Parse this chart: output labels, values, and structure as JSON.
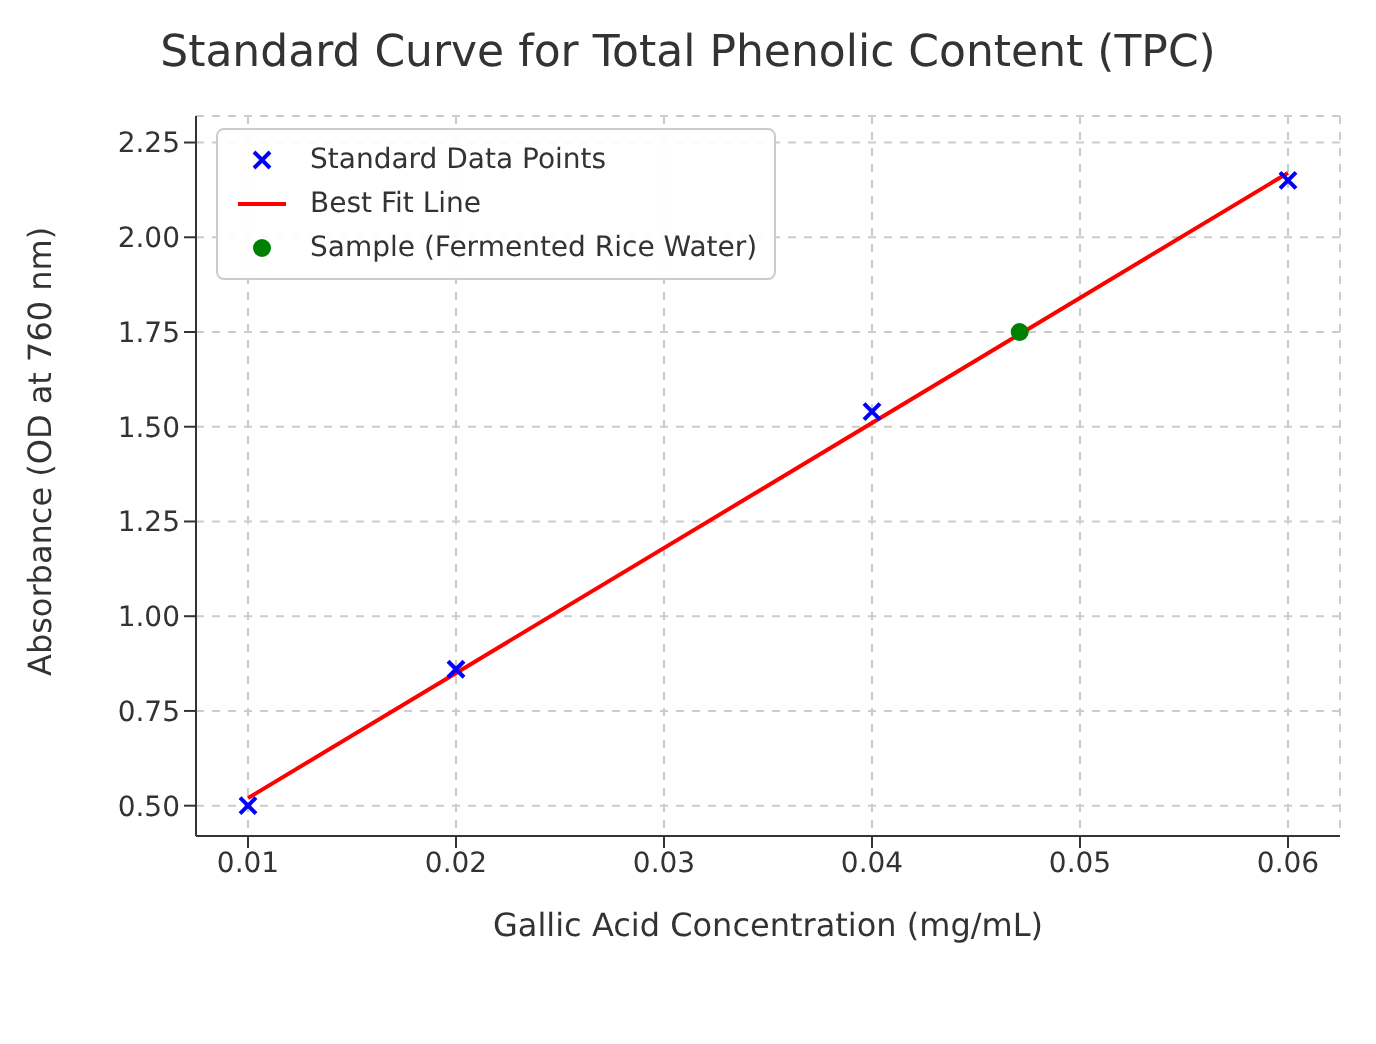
{
  "chart_data": {
    "type": "scatter",
    "title": "Standard Curve for Total Phenolic Content (TPC)",
    "xlabel": "Gallic Acid Concentration (mg/mL)",
    "ylabel": "Absorbance (OD at 760 nm)",
    "xlim": [
      0.0075,
      0.0625
    ],
    "xticks": [
      0.01,
      0.02,
      0.03,
      0.04,
      0.05,
      0.06
    ],
    "ylim": [
      0.42,
      2.32
    ],
    "yticks": [
      {
        "value": 0.5,
        "label": "0.50"
      },
      0.75,
      {
        "value": 1,
        "label": "1.00"
      },
      1.25,
      {
        "value": 1.5,
        "label": "1.50"
      },
      1.75,
      {
        "value": 2,
        "label": "2.00"
      },
      2.25
    ],
    "grid": true,
    "legend": "top left",
    "series": [
      {
        "name": "Standard Data Points",
        "marker": "cross",
        "color": "#0000ff",
        "x": [
          0.01,
          0.02,
          0.04,
          0.06
        ],
        "values": [
          0.5,
          0.86,
          1.54,
          2.15
        ]
      },
      {
        "name": "Best Fit Line",
        "type": "line",
        "line_style": "solid",
        "marker": "none",
        "color": "#ff0000",
        "x": [
          0.01,
          0.06
        ],
        "values": [
          0.52,
          2.17
        ]
      },
      {
        "name": "Sample (Fermented Rice Water)",
        "marker": "circle",
        "color": "#008000",
        "x": [
          0.0471
        ],
        "values": [
          1.75
        ]
      }
    ]
  }
}
